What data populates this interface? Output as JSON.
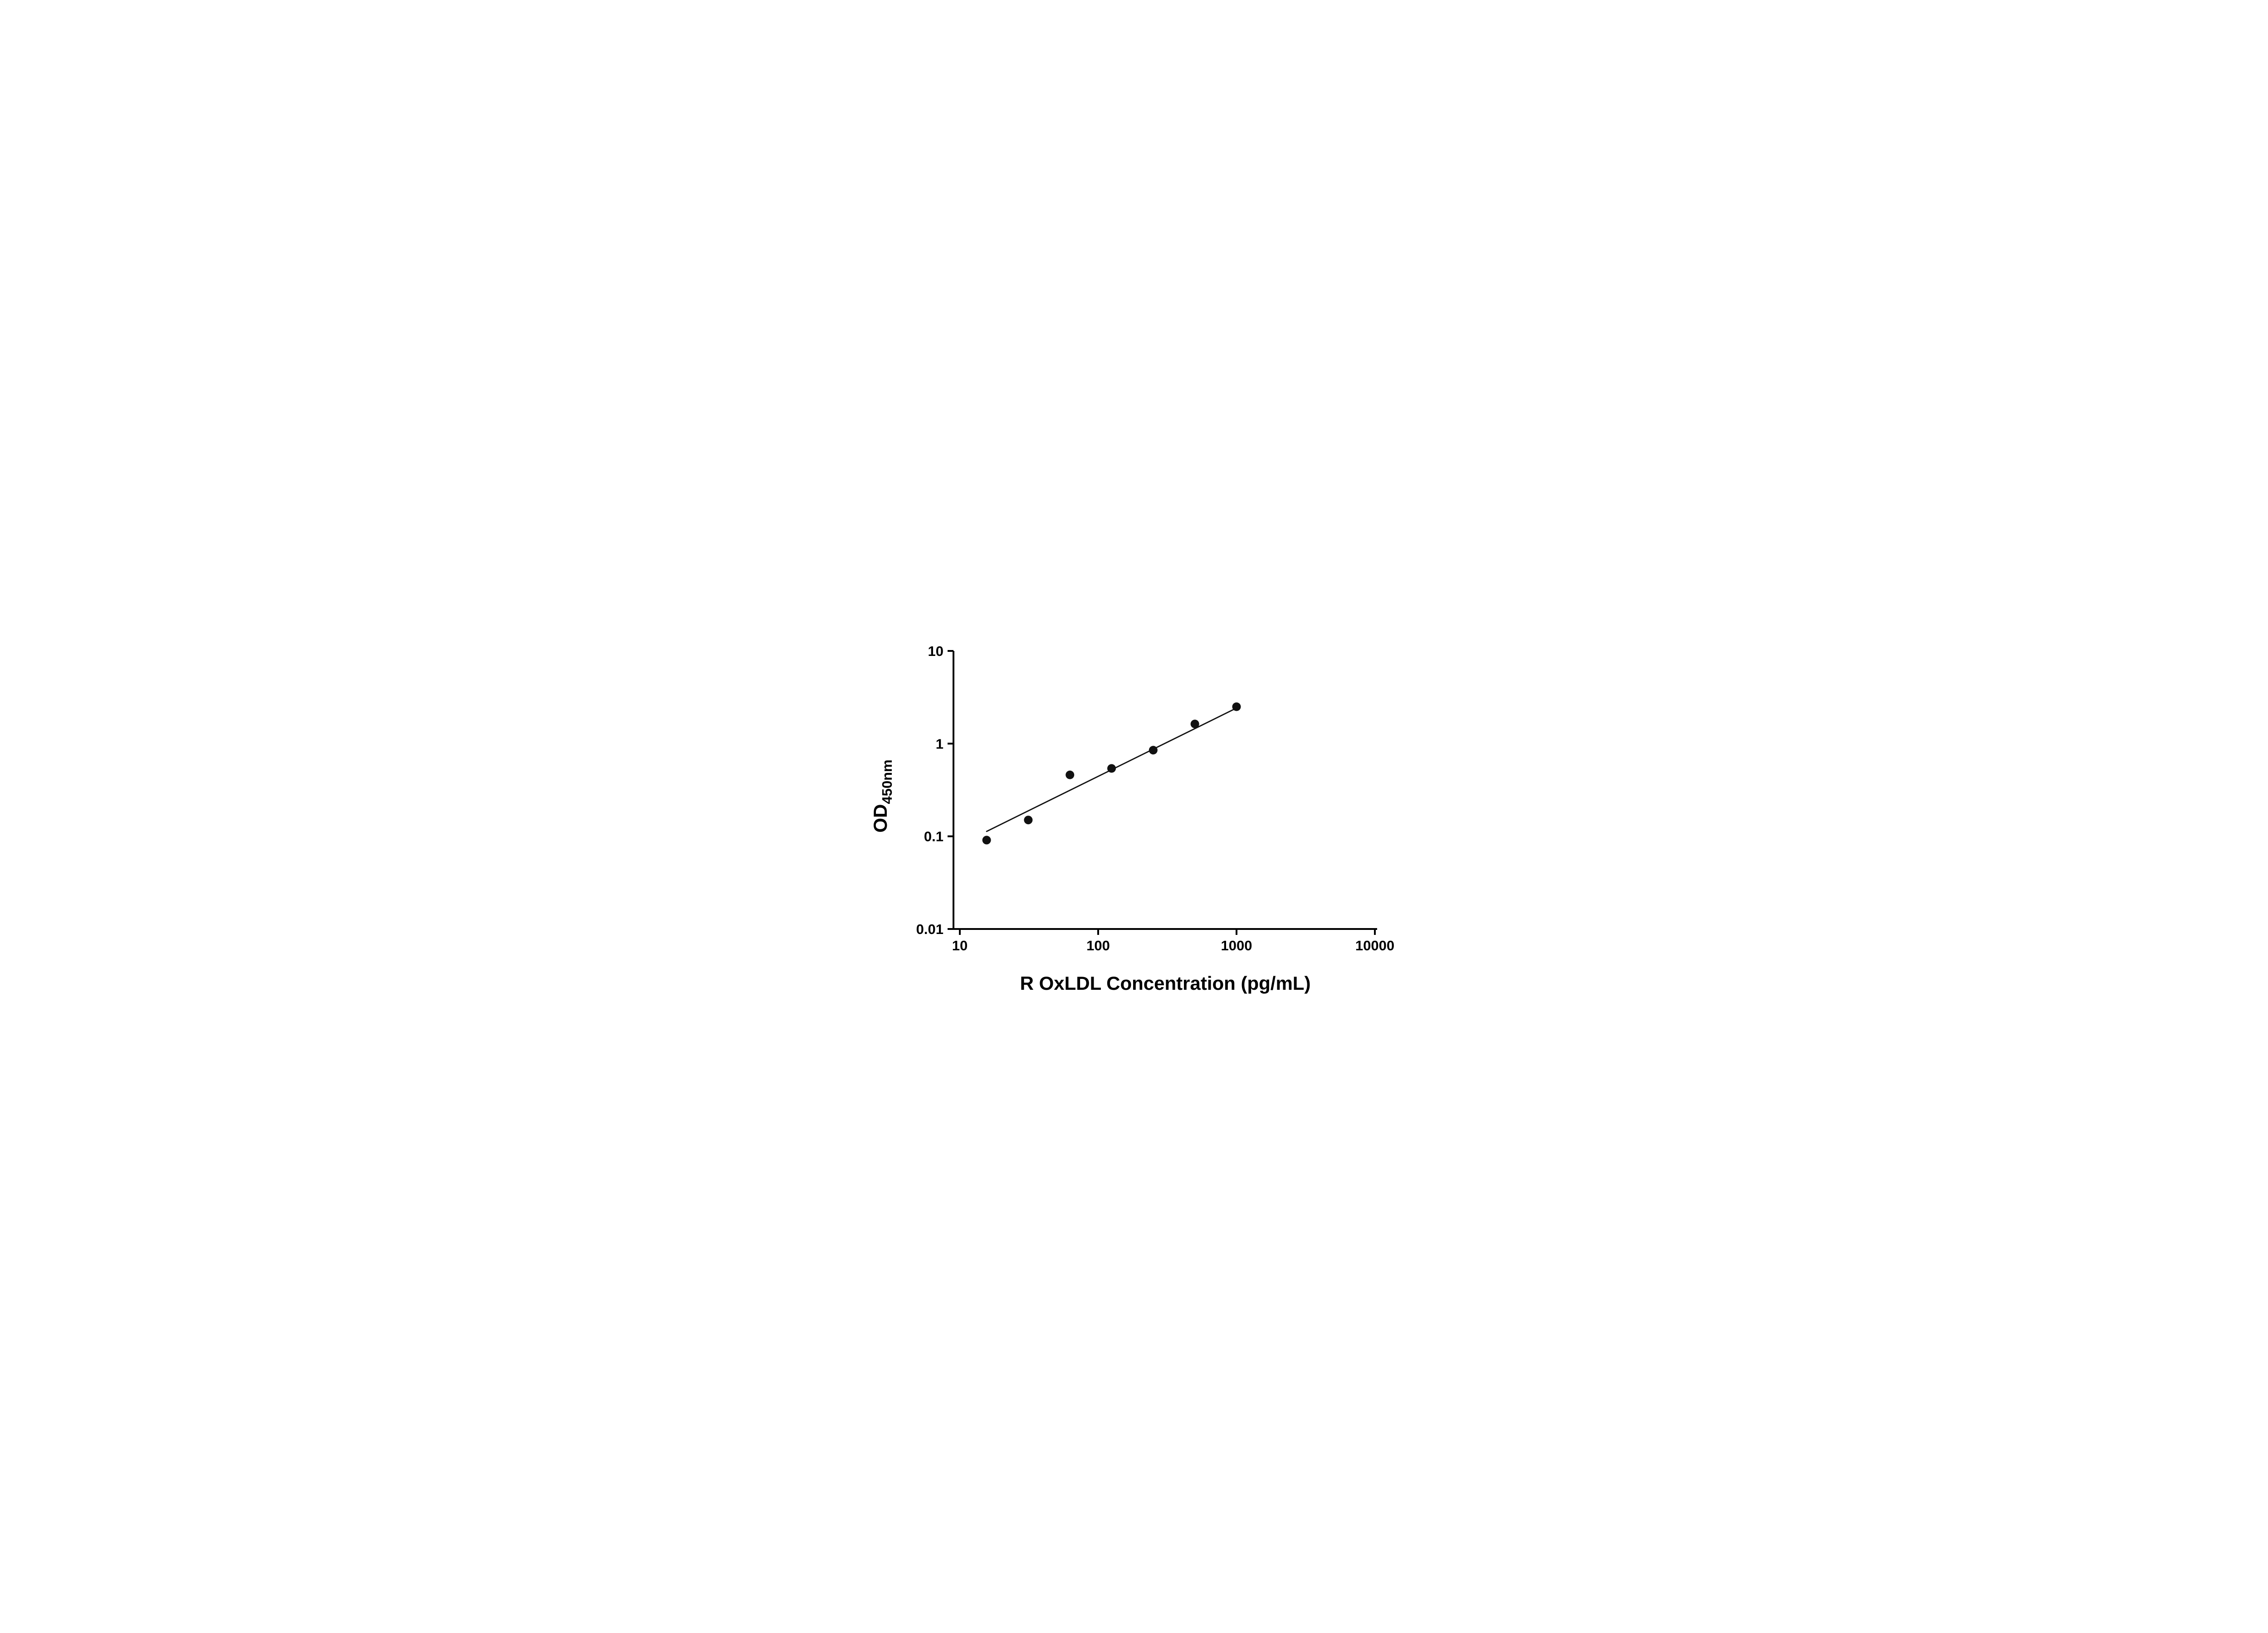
{
  "chart_data": {
    "type": "scatter",
    "title": "",
    "xlabel": "R OxLDL Concentration (pg/mL)",
    "ylabel_main": "OD",
    "ylabel_sub": "450nm",
    "x_scale": "log",
    "y_scale": "log",
    "xlim": [
      10,
      10000
    ],
    "ylim": [
      0.01,
      10
    ],
    "x_tick_values": [
      10,
      100,
      1000,
      10000
    ],
    "x_tick_labels": [
      "10",
      "100",
      "1000",
      "10000"
    ],
    "y_tick_values": [
      10,
      1,
      0.1,
      0.01
    ],
    "y_tick_labels": [
      "10",
      "1",
      "0.1",
      "0.01"
    ],
    "grid": "off",
    "legend": "none",
    "points": {
      "x": [
        15.625,
        31.25,
        62.5,
        125,
        250,
        500,
        1000
      ],
      "y": [
        0.091,
        0.15,
        0.46,
        0.54,
        0.85,
        1.63,
        2.5
      ]
    },
    "trendline": {
      "x1": 15.625,
      "y1": 0.113,
      "x2": 1000,
      "y2": 2.42
    },
    "colors": {
      "points": "#111111",
      "line": "#111111",
      "axis": "#000000",
      "text": "#000000",
      "background": "#ffffff"
    }
  }
}
